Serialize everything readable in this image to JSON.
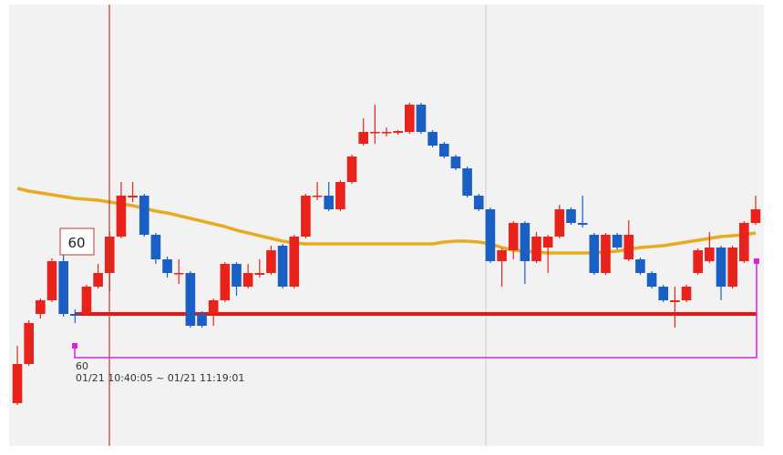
{
  "chart_data": {
    "type": "candlestick",
    "up_color": "#e8231b",
    "down_color": "#1a5fc4",
    "ylim": [
      10,
      495
    ],
    "open": [
      57,
      100,
      155,
      170,
      213,
      155,
      155,
      185,
      200,
      240,
      283,
      285,
      242,
      215,
      200,
      200,
      155,
      155,
      170,
      210,
      185,
      198,
      200,
      230,
      185,
      240,
      285,
      285,
      270,
      300,
      342,
      355,
      355,
      354,
      355,
      385,
      355,
      342,
      328,
      315,
      285,
      270,
      213,
      225,
      255,
      213,
      228,
      240,
      270,
      255,
      242,
      200,
      242,
      215,
      215,
      200,
      185,
      168,
      170,
      200,
      213,
      228,
      185,
      213,
      255
    ],
    "high": [
      120,
      148,
      172,
      216,
      235,
      160,
      187,
      210,
      245,
      300,
      300,
      287,
      244,
      218,
      215,
      202,
      158,
      172,
      212,
      212,
      210,
      215,
      230,
      232,
      242,
      287,
      300,
      300,
      302,
      330,
      370,
      385,
      360,
      357,
      387,
      387,
      357,
      344,
      330,
      317,
      287,
      272,
      227,
      257,
      257,
      245,
      242,
      275,
      272,
      285,
      244,
      244,
      244,
      258,
      217,
      202,
      187,
      185,
      187,
      227,
      245,
      230,
      230,
      257,
      285
    ],
    "low": [
      55,
      98,
      150,
      168,
      152,
      145,
      153,
      183,
      180,
      238,
      278,
      240,
      210,
      195,
      188,
      140,
      140,
      142,
      168,
      175,
      183,
      195,
      198,
      183,
      183,
      238,
      280,
      268,
      268,
      298,
      340,
      342,
      350,
      352,
      353,
      353,
      338,
      326,
      313,
      283,
      268,
      211,
      185,
      215,
      188,
      211,
      200,
      238,
      253,
      250,
      198,
      198,
      226,
      213,
      198,
      183,
      168,
      140,
      168,
      198,
      211,
      170,
      183,
      211,
      253
    ],
    "close": [
      100,
      145,
      170,
      213,
      155,
      153,
      185,
      200,
      240,
      285,
      285,
      242,
      215,
      200,
      200,
      142,
      142,
      170,
      210,
      185,
      200,
      200,
      225,
      185,
      240,
      285,
      285,
      270,
      300,
      328,
      355,
      355,
      355,
      356,
      385,
      355,
      340,
      328,
      315,
      285,
      270,
      213,
      225,
      255,
      213,
      240,
      240,
      270,
      255,
      253,
      200,
      242,
      228,
      242,
      200,
      185,
      170,
      170,
      185,
      225,
      228,
      185,
      228,
      255,
      270
    ],
    "series": [
      {
        "color": "#e6ac1e",
        "values": [
          293,
          290,
          288,
          286,
          284,
          282,
          281,
          280,
          278,
          276,
          274,
          271,
          268,
          266,
          263,
          260,
          257,
          254,
          251,
          247,
          244,
          241,
          238,
          235,
          233,
          232,
          232,
          232,
          232,
          232,
          232,
          232,
          232,
          232,
          232,
          232,
          232,
          234,
          235,
          235,
          234,
          232,
          228,
          225,
          224,
          223,
          222,
          222,
          222,
          222,
          222,
          223,
          224,
          226,
          228,
          229,
          230,
          232,
          234,
          236,
          238,
          240,
          241,
          242,
          244
        ]
      }
    ],
    "support_level": 155,
    "support_color": "#ee1111",
    "cursor_label": "60",
    "range_count": "60",
    "range_period": "01/21 10:40:05 ~ 01/21 11:19:01"
  }
}
